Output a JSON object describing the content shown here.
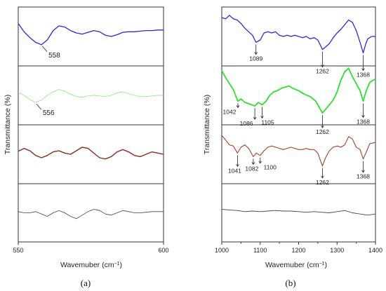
{
  "chart_data": [
    {
      "type": "line",
      "panel_label": "(a)",
      "xlabel": "Wavemuber (cm",
      "xlabel_sup": "−1",
      "xlabel_suffix": ")",
      "ylabel": "Transmittance (%)",
      "xlim": [
        550,
        600
      ],
      "x_ticks": [
        "550",
        "600"
      ],
      "grid": false,
      "series": [
        {
          "color": "#2a2ad8",
          "width": 1.3,
          "x": [
            550,
            552,
            554,
            556,
            558,
            560,
            562,
            564,
            566,
            568,
            570,
            572,
            574,
            576,
            578,
            580,
            582,
            584,
            586,
            588,
            590,
            592,
            594,
            596,
            598,
            600
          ],
          "y": [
            0.72,
            0.58,
            0.48,
            0.4,
            0.36,
            0.44,
            0.6,
            0.68,
            0.66,
            0.6,
            0.56,
            0.54,
            0.57,
            0.6,
            0.58,
            0.52,
            0.5,
            0.53,
            0.57,
            0.58,
            0.58,
            0.59,
            0.6,
            0.6,
            0.61,
            0.61
          ]
        },
        {
          "color": "#9aea8a",
          "width": 0.9,
          "x": [
            550,
            552,
            554,
            556,
            558,
            560,
            562,
            564,
            566,
            568,
            570,
            572,
            574,
            576,
            578,
            580,
            582,
            584,
            586,
            588,
            590,
            592,
            594,
            596,
            598,
            600
          ],
          "y": [
            0.55,
            0.5,
            0.43,
            0.38,
            0.42,
            0.5,
            0.56,
            0.6,
            0.57,
            0.52,
            0.48,
            0.47,
            0.49,
            0.5,
            0.49,
            0.48,
            0.5,
            0.54,
            0.56,
            0.53,
            0.5,
            0.48,
            0.48,
            0.49,
            0.5,
            0.5
          ]
        },
        {
          "color": "#8b2a1e",
          "width": 1.4,
          "x": [
            550,
            552,
            554,
            556,
            558,
            560,
            562,
            564,
            566,
            568,
            570,
            572,
            574,
            576,
            578,
            580,
            582,
            584,
            586,
            588,
            590,
            592,
            594,
            596,
            598,
            600
          ],
          "y": [
            0.55,
            0.6,
            0.56,
            0.48,
            0.44,
            0.48,
            0.54,
            0.56,
            0.52,
            0.5,
            0.56,
            0.62,
            0.6,
            0.52,
            0.44,
            0.42,
            0.46,
            0.54,
            0.58,
            0.54,
            0.48,
            0.46,
            0.5,
            0.54,
            0.52,
            0.5
          ]
        },
        {
          "color": "#444444",
          "width": 0.8,
          "x": [
            550,
            552,
            554,
            556,
            558,
            560,
            562,
            564,
            566,
            568,
            570,
            572,
            574,
            576,
            578,
            580,
            582,
            584,
            586,
            588,
            590,
            592,
            594,
            596,
            598,
            600
          ],
          "y": [
            0.52,
            0.5,
            0.5,
            0.52,
            0.48,
            0.44,
            0.5,
            0.54,
            0.5,
            0.44,
            0.4,
            0.46,
            0.52,
            0.56,
            0.54,
            0.48,
            0.46,
            0.5,
            0.54,
            0.52,
            0.5,
            0.5,
            0.51,
            0.52,
            0.52,
            0.52
          ]
        }
      ],
      "annotations": [
        {
          "series": 0,
          "text": "558",
          "x": 558
        },
        {
          "series": 1,
          "text": "556",
          "x": 556
        }
      ]
    },
    {
      "type": "line",
      "panel_label": "(b)",
      "xlabel": "Wavemuber (cm",
      "xlabel_sup": "−1",
      "xlabel_suffix": ")",
      "ylabel": "Transmittance (%)",
      "xlim": [
        1000,
        1400
      ],
      "x_ticks": [
        "1000",
        "1100",
        "1200",
        "1300",
        "1400"
      ],
      "grid": false,
      "series": [
        {
          "color": "#2a2ad8",
          "width": 1.3,
          "x": [
            1000,
            1010,
            1020,
            1030,
            1040,
            1050,
            1060,
            1070,
            1080,
            1089,
            1100,
            1110,
            1120,
            1130,
            1140,
            1150,
            1160,
            1170,
            1180,
            1190,
            1200,
            1210,
            1220,
            1230,
            1240,
            1250,
            1262,
            1270,
            1280,
            1290,
            1300,
            1310,
            1320,
            1330,
            1340,
            1350,
            1360,
            1368,
            1375,
            1380,
            1390,
            1400
          ],
          "y": [
            0.82,
            0.8,
            0.86,
            0.8,
            0.78,
            0.72,
            0.64,
            0.58,
            0.52,
            0.4,
            0.44,
            0.56,
            0.58,
            0.56,
            0.58,
            0.52,
            0.5,
            0.52,
            0.5,
            0.52,
            0.5,
            0.48,
            0.5,
            0.46,
            0.48,
            0.44,
            0.28,
            0.32,
            0.38,
            0.48,
            0.56,
            0.62,
            0.7,
            0.78,
            0.74,
            0.6,
            0.4,
            0.22,
            0.38,
            0.46,
            0.5,
            0.5
          ]
        },
        {
          "color": "#30e030",
          "width": 1.8,
          "x": [
            1000,
            1010,
            1020,
            1030,
            1042,
            1050,
            1060,
            1070,
            1086,
            1095,
            1105,
            1115,
            1125,
            1135,
            1145,
            1155,
            1165,
            1175,
            1185,
            1200,
            1215,
            1230,
            1245,
            1262,
            1275,
            1290,
            1300,
            1310,
            1320,
            1330,
            1340,
            1350,
            1360,
            1368,
            1375,
            1385,
            1400
          ],
          "y": [
            0.92,
            0.8,
            0.7,
            0.6,
            0.4,
            0.44,
            0.38,
            0.36,
            0.32,
            0.38,
            0.34,
            0.4,
            0.5,
            0.56,
            0.58,
            0.62,
            0.64,
            0.66,
            0.62,
            0.58,
            0.52,
            0.48,
            0.4,
            0.2,
            0.3,
            0.42,
            0.56,
            0.76,
            0.9,
            0.96,
            0.82,
            0.7,
            0.58,
            0.4,
            0.56,
            0.72,
            0.78
          ]
        },
        {
          "color": "#a0442e",
          "width": 1.1,
          "x": [
            1000,
            1010,
            1020,
            1030,
            1041,
            1050,
            1060,
            1070,
            1082,
            1090,
            1100,
            1110,
            1120,
            1130,
            1140,
            1150,
            1160,
            1170,
            1180,
            1190,
            1200,
            1210,
            1220,
            1230,
            1240,
            1250,
            1262,
            1270,
            1280,
            1290,
            1300,
            1310,
            1320,
            1330,
            1340,
            1350,
            1360,
            1368,
            1375,
            1385,
            1400
          ],
          "y": [
            0.82,
            0.74,
            0.66,
            0.64,
            0.52,
            0.62,
            0.66,
            0.6,
            0.46,
            0.52,
            0.48,
            0.56,
            0.62,
            0.64,
            0.62,
            0.6,
            0.58,
            0.6,
            0.62,
            0.6,
            0.58,
            0.58,
            0.6,
            0.58,
            0.58,
            0.52,
            0.3,
            0.44,
            0.56,
            0.62,
            0.64,
            0.62,
            0.66,
            0.8,
            0.76,
            0.62,
            0.58,
            0.42,
            0.52,
            0.68,
            0.7
          ]
        },
        {
          "color": "#444444",
          "width": 0.9,
          "x": [
            1000,
            1020,
            1040,
            1060,
            1080,
            1100,
            1120,
            1140,
            1160,
            1180,
            1200,
            1220,
            1240,
            1260,
            1280,
            1300,
            1320,
            1340,
            1360,
            1380,
            1400
          ],
          "y": [
            0.56,
            0.55,
            0.54,
            0.52,
            0.53,
            0.52,
            0.53,
            0.54,
            0.53,
            0.53,
            0.52,
            0.51,
            0.52,
            0.51,
            0.5,
            0.52,
            0.54,
            0.5,
            0.48,
            0.46,
            0.48
          ]
        }
      ],
      "annotations": [
        {
          "series": 0,
          "text": "1089",
          "x": 1089
        },
        {
          "series": 0,
          "text": "1262",
          "x": 1262
        },
        {
          "series": 0,
          "text": "1368",
          "x": 1368
        },
        {
          "series": 1,
          "text": "1042",
          "x": 1042
        },
        {
          "series": 1,
          "text": "1086",
          "x": 1086
        },
        {
          "series": 1,
          "text": "1105",
          "x": 1105
        },
        {
          "series": 1,
          "text": "1262",
          "x": 1262
        },
        {
          "series": 1,
          "text": "1368",
          "x": 1368
        },
        {
          "series": 2,
          "text": "1041",
          "x": 1041
        },
        {
          "series": 2,
          "text": "1082",
          "x": 1082
        },
        {
          "series": 2,
          "text": "1100",
          "x": 1100
        },
        {
          "series": 2,
          "text": "1262",
          "x": 1262
        },
        {
          "series": 2,
          "text": "1368",
          "x": 1368
        }
      ]
    }
  ]
}
